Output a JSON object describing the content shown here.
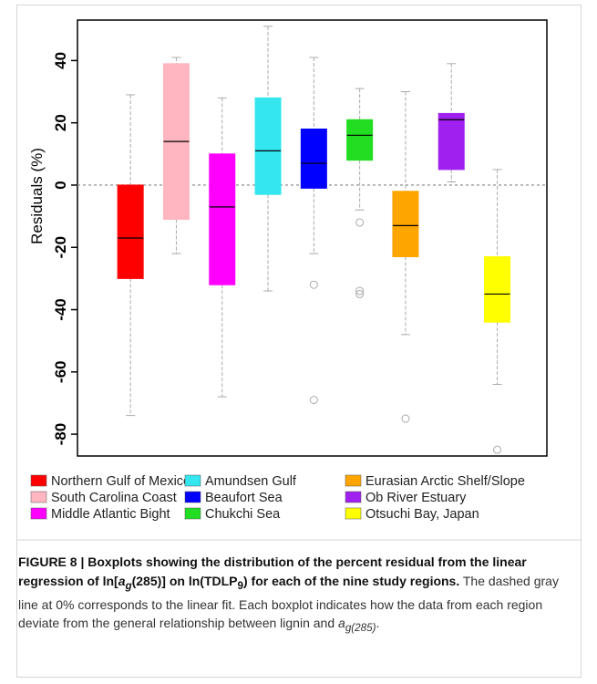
{
  "chart_data": {
    "type": "box",
    "y_label": "Residuals    (%)",
    "ylim": [
      -87,
      53
    ],
    "yticks": [
      -80,
      -60,
      -40,
      -20,
      0,
      20,
      40
    ],
    "reference_line": 0,
    "series": [
      {
        "name": "Northern Gulf of Mexico",
        "color": "#ff0000",
        "whisker_low": -74,
        "q1": -30,
        "median": -17,
        "q3": 0,
        "whisker_high": 29,
        "outliers": []
      },
      {
        "name": "South Carolina Coast",
        "color": "#ffb6c1",
        "whisker_low": -22,
        "q1": -11,
        "median": 14,
        "q3": 39,
        "whisker_high": 41,
        "outliers": []
      },
      {
        "name": "Middle Atlantic Bight",
        "color": "#ff00ff",
        "whisker_low": -68,
        "q1": -32,
        "median": -7,
        "q3": 10,
        "whisker_high": 28,
        "outliers": []
      },
      {
        "name": "Amundsen Gulf",
        "color": "#33e6f0",
        "whisker_low": -34,
        "q1": -3,
        "median": 11,
        "q3": 28,
        "whisker_high": 51,
        "outliers": []
      },
      {
        "name": "Beaufort Sea",
        "color": "#0000ff",
        "whisker_low": -22,
        "q1": -1,
        "median": 7,
        "q3": 18,
        "whisker_high": 41,
        "outliers": [
          -32,
          -69
        ]
      },
      {
        "name": "Chukchi Sea",
        "color": "#22dd22",
        "whisker_low": -8,
        "q1": 8,
        "median": 16,
        "q3": 21,
        "whisker_high": 31,
        "outliers": [
          -12,
          -34,
          -35
        ]
      },
      {
        "name": "Eurasian Arctic Shelf/Slope",
        "color": "#ffa500",
        "whisker_low": -48,
        "q1": -23,
        "median": -13,
        "q3": -2,
        "whisker_high": 30,
        "outliers": [
          -75
        ]
      },
      {
        "name": "Ob River Estuary",
        "color": "#a020f0",
        "whisker_low": 1,
        "q1": 5,
        "median": 21,
        "q3": 23,
        "whisker_high": 39,
        "outliers": []
      },
      {
        "name": "Otsuchi Bay, Japan",
        "color": "#ffff00",
        "whisker_low": -64,
        "q1": -44,
        "median": -35,
        "q3": -23,
        "whisker_high": 5,
        "outliers": [
          -85
        ]
      }
    ]
  },
  "caption": [
    "FIGURE 8 | Boxplots showing the distribution of the percent residual from the linear regression of ln[",
    "a",
    "g",
    "(285)] on ln(TDLP",
    "9",
    ") for each of the nine study regions.",
    " The dashed gray line at 0% corresponds to the linear fit. Each boxplot indicates how the data from each region deviate from the general relationship between lignin and ",
    "a",
    "g(285)",
    "."
  ]
}
